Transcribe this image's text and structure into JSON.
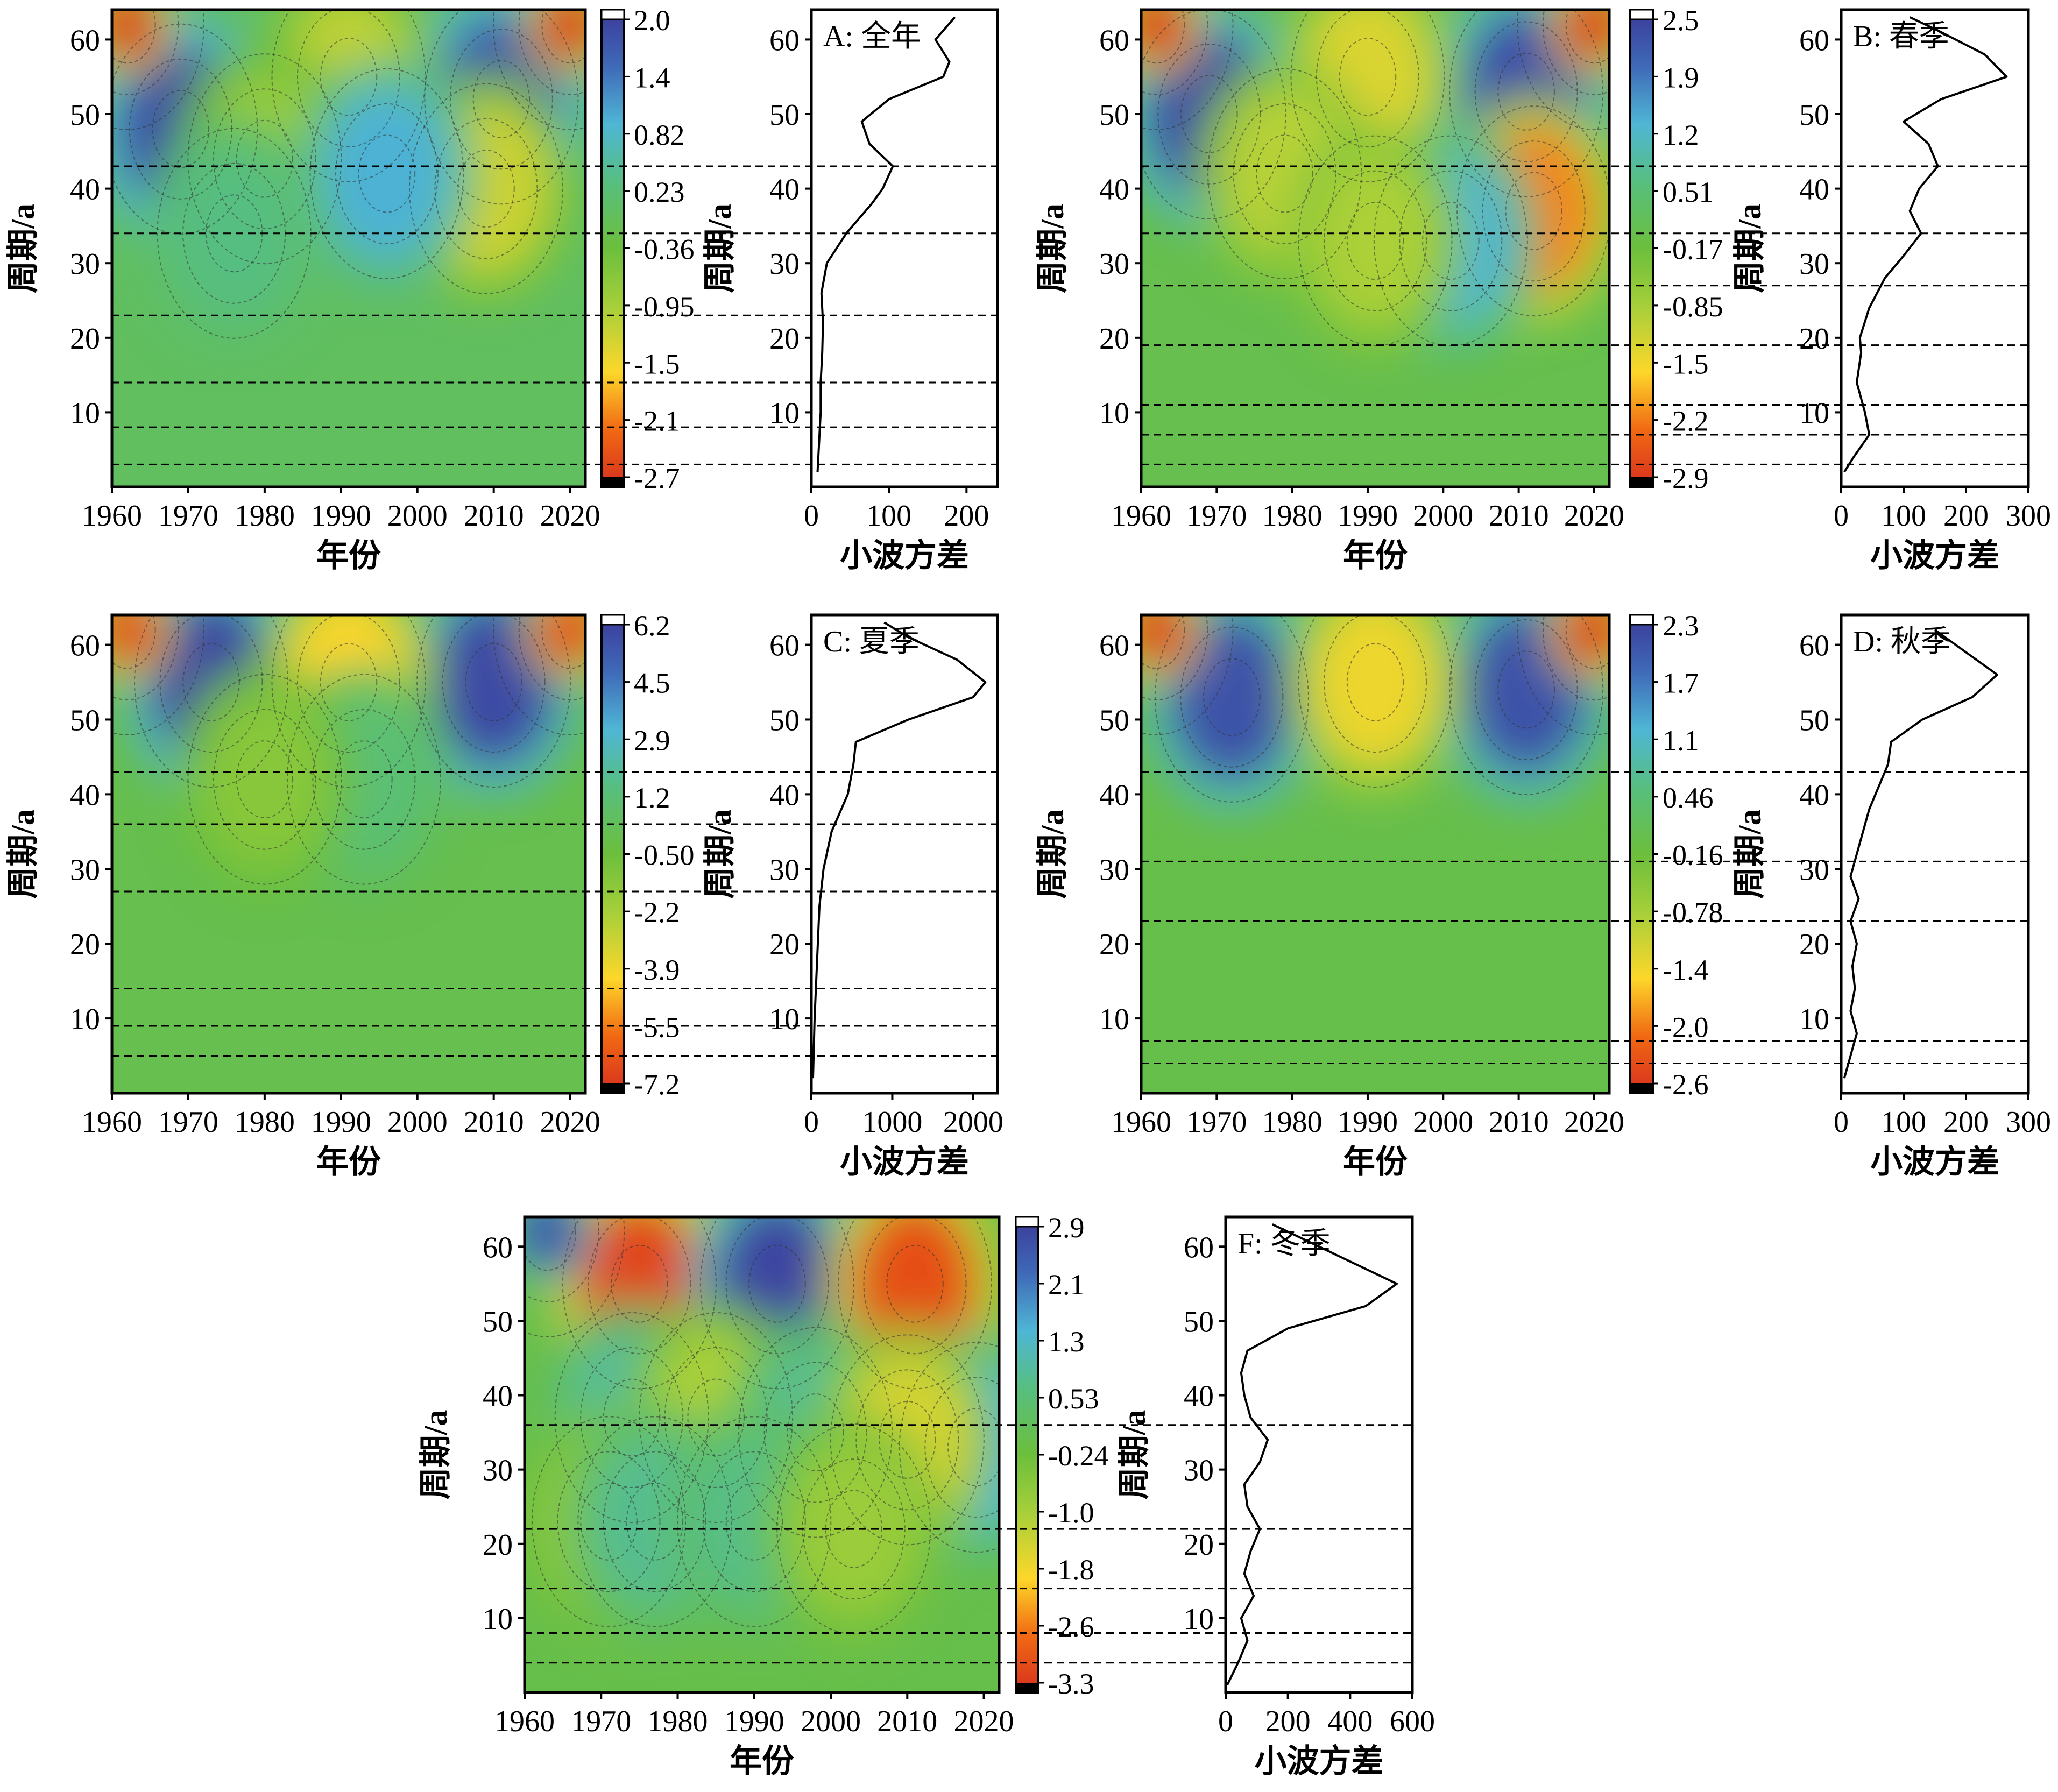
{
  "chart_data": [
    {
      "id": "A",
      "type": "heatmap",
      "title": "A: 全年",
      "xlabel": "年份",
      "ylabel": "周期/a",
      "xlim": [
        1960,
        2022
      ],
      "ylim": [
        0,
        64
      ],
      "xticks": [
        1960,
        1970,
        1980,
        1990,
        2000,
        2010,
        2020
      ],
      "yticks": [
        10,
        20,
        30,
        40,
        50,
        60
      ],
      "colorbar": {
        "ticks": [
          "2.0",
          "1.4",
          "0.82",
          "0.23",
          "-0.36",
          "-0.95",
          "-1.5",
          "-2.1",
          "-2.7"
        ],
        "min": -2.7,
        "max": 2.0
      },
      "blobs": [
        {
          "x": 1969,
          "y": 48,
          "v": 1.8
        },
        {
          "x": 2011,
          "y": 52,
          "v": 1.7
        },
        {
          "x": 1991,
          "y": 55,
          "v": -1.1
        },
        {
          "x": 2009,
          "y": 40,
          "v": -1.2
        },
        {
          "x": 1980,
          "y": 44,
          "v": -0.8
        },
        {
          "x": 1996,
          "y": 42,
          "v": 0.9
        },
        {
          "x": 1976,
          "y": 34,
          "v": 0.3
        },
        {
          "x": 1962,
          "y": 62,
          "v": -2.6
        },
        {
          "x": 2020,
          "y": 62,
          "v": -2.6
        }
      ],
      "variance": {
        "xlabel": "小波方差",
        "xlim": [
          0,
          240
        ],
        "xticks": [
          0,
          100,
          200
        ],
        "period": [
          2,
          6,
          10,
          14,
          18,
          22,
          26,
          30,
          34,
          38,
          40,
          43,
          46,
          49,
          52,
          55,
          57,
          60,
          63
        ],
        "values": [
          8,
          10,
          12,
          12,
          14,
          15,
          13,
          20,
          45,
          78,
          92,
          105,
          75,
          65,
          100,
          170,
          178,
          160,
          185
        ]
      },
      "peaks": [
        3,
        8,
        14,
        23,
        34,
        43
      ]
    },
    {
      "id": "B",
      "type": "heatmap",
      "title": "B: 春季",
      "xlabel": "年份",
      "ylabel": "周期/a",
      "xlim": [
        1960,
        2022
      ],
      "ylim": [
        0,
        64
      ],
      "xticks": [
        1960,
        1970,
        1980,
        1990,
        2000,
        2010,
        2020
      ],
      "yticks": [
        10,
        20,
        30,
        40,
        50,
        60
      ],
      "colorbar": {
        "ticks": [
          "2.5",
          "1.9",
          "1.2",
          "0.51",
          "-0.17",
          "-0.85",
          "-1.5",
          "-2.2",
          "-2.9"
        ],
        "min": -2.9,
        "max": 2.5
      },
      "blobs": [
        {
          "x": 1969,
          "y": 50,
          "v": 2.3
        },
        {
          "x": 2011,
          "y": 53,
          "v": 2.2
        },
        {
          "x": 1990,
          "y": 55,
          "v": -1.3
        },
        {
          "x": 2012,
          "y": 37,
          "v": -2.1
        },
        {
          "x": 1979,
          "y": 42,
          "v": -1.0
        },
        {
          "x": 2001,
          "y": 33,
          "v": 1.2
        },
        {
          "x": 1991,
          "y": 33,
          "v": -0.9
        },
        {
          "x": 1962,
          "y": 62,
          "v": -2.8
        },
        {
          "x": 2020,
          "y": 62,
          "v": -2.8
        }
      ],
      "variance": {
        "xlabel": "小波方差",
        "xlim": [
          0,
          300
        ],
        "xticks": [
          0,
          100,
          200,
          300
        ],
        "period": [
          2,
          4,
          7,
          10,
          14,
          18,
          20,
          24,
          28,
          31,
          34,
          37,
          40,
          43,
          46,
          49,
          52,
          55,
          58,
          61,
          63
        ],
        "values": [
          5,
          20,
          45,
          38,
          25,
          32,
          30,
          45,
          70,
          100,
          128,
          110,
          125,
          155,
          140,
          100,
          160,
          265,
          230,
          160,
          110
        ]
      },
      "peaks": [
        3,
        7,
        11,
        19,
        27,
        34,
        43
      ]
    },
    {
      "id": "C",
      "type": "heatmap",
      "title": "C: 夏季",
      "xlabel": "年份",
      "ylabel": "周期/a",
      "xlim": [
        1960,
        2022
      ],
      "ylim": [
        0,
        64
      ],
      "xticks": [
        1960,
        1970,
        1980,
        1990,
        2000,
        2010,
        2020
      ],
      "yticks": [
        10,
        20,
        30,
        40,
        50,
        60
      ],
      "colorbar": {
        "ticks": [
          "6.2",
          "4.5",
          "2.9",
          "1.2",
          "-0.50",
          "-2.2",
          "-3.9",
          "-5.5",
          "-7.2"
        ],
        "min": -7.2,
        "max": 6.2
      },
      "blobs": [
        {
          "x": 1973,
          "y": 55,
          "v": 5.8
        },
        {
          "x": 2010,
          "y": 55,
          "v": 5.6
        },
        {
          "x": 1991,
          "y": 55,
          "v": -4.0
        },
        {
          "x": 1962,
          "y": 62,
          "v": -6.5
        },
        {
          "x": 2020,
          "y": 62,
          "v": -6.5
        },
        {
          "x": 1993,
          "y": 42,
          "v": 1.1
        },
        {
          "x": 1980,
          "y": 42,
          "v": -1.3
        }
      ],
      "variance": {
        "xlabel": "小波方差",
        "xlim": [
          0,
          2300
        ],
        "xticks": [
          0,
          1000,
          2000
        ],
        "period": [
          2,
          6,
          10,
          15,
          20,
          25,
          30,
          35,
          40,
          44,
          47,
          50,
          53,
          55,
          58,
          61,
          63
        ],
        "values": [
          20,
          30,
          40,
          60,
          80,
          100,
          150,
          250,
          450,
          520,
          550,
          1200,
          2000,
          2150,
          1800,
          1200,
          900
        ]
      },
      "peaks": [
        5,
        9,
        14,
        27,
        36,
        43
      ]
    },
    {
      "id": "D",
      "type": "heatmap",
      "title": "D: 秋季",
      "xlabel": "年份",
      "ylabel": "周期/a",
      "xlim": [
        1960,
        2022
      ],
      "ylim": [
        0,
        64
      ],
      "xticks": [
        1960,
        1970,
        1980,
        1990,
        2000,
        2010,
        2020
      ],
      "yticks": [
        10,
        20,
        30,
        40,
        50,
        60
      ],
      "colorbar": {
        "ticks": [
          "2.3",
          "1.7",
          "1.1",
          "0.46",
          "-0.16",
          "-0.78",
          "-1.4",
          "-2.0",
          "-2.6"
        ],
        "min": -2.6,
        "max": 2.3
      },
      "blobs": [
        {
          "x": 1972,
          "y": 53,
          "v": 2.0
        },
        {
          "x": 2011,
          "y": 54,
          "v": 2.0
        },
        {
          "x": 1991,
          "y": 55,
          "v": -1.3
        },
        {
          "x": 1962,
          "y": 62,
          "v": -2.5
        },
        {
          "x": 2020,
          "y": 62,
          "v": -2.5
        }
      ],
      "variance": {
        "xlabel": "小波方差",
        "xlim": [
          0,
          300
        ],
        "xticks": [
          0,
          100,
          200,
          300
        ],
        "period": [
          2,
          5,
          8,
          11,
          14,
          17,
          20,
          23,
          26,
          29,
          32,
          35,
          38,
          41,
          44,
          47,
          50,
          53,
          56,
          59,
          62
        ],
        "values": [
          5,
          15,
          25,
          15,
          22,
          18,
          25,
          15,
          28,
          15,
          25,
          35,
          45,
          60,
          75,
          80,
          130,
          210,
          250,
          200,
          150
        ]
      },
      "peaks": [
        4,
        7,
        23,
        31,
        43
      ]
    },
    {
      "id": "F",
      "type": "heatmap",
      "title": "F: 冬季",
      "xlabel": "年份",
      "ylabel": "周期/a",
      "xlim": [
        1960,
        2022
      ],
      "ylim": [
        0,
        64
      ],
      "xticks": [
        1960,
        1970,
        1980,
        1990,
        2000,
        2010,
        2020
      ],
      "yticks": [
        10,
        20,
        30,
        40,
        50,
        60
      ],
      "colorbar": {
        "ticks": [
          "2.9",
          "2.1",
          "1.3",
          "0.53",
          "-0.24",
          "-1.0",
          "-1.8",
          "-2.6",
          "-3.3"
        ],
        "min": -3.3,
        "max": 2.9
      },
      "blobs": [
        {
          "x": 1975,
          "y": 55,
          "v": -3.0
        },
        {
          "x": 1993,
          "y": 55,
          "v": 2.7
        },
        {
          "x": 2011,
          "y": 55,
          "v": -2.9
        },
        {
          "x": 2019,
          "y": 33,
          "v": 1.4
        },
        {
          "x": 1974,
          "y": 37,
          "v": 0.9
        },
        {
          "x": 1985,
          "y": 37,
          "v": -1.0
        },
        {
          "x": 1998,
          "y": 35,
          "v": 0.8
        },
        {
          "x": 2010,
          "y": 34,
          "v": -1.4
        },
        {
          "x": 1971,
          "y": 23,
          "v": -0.8
        },
        {
          "x": 1977,
          "y": 23,
          "v": 0.8
        },
        {
          "x": 1990,
          "y": 23,
          "v": 0.7
        },
        {
          "x": 2003,
          "y": 22,
          "v": -0.8
        },
        {
          "x": 1963,
          "y": 62,
          "v": 2.5
        }
      ],
      "variance": {
        "xlabel": "小波方差",
        "xlim": [
          0,
          600
        ],
        "xticks": [
          0,
          200,
          400,
          600
        ],
        "period": [
          1,
          4,
          7,
          10,
          13,
          16,
          19,
          22,
          25,
          28,
          31,
          34,
          37,
          40,
          43,
          46,
          49,
          52,
          55,
          58,
          61,
          63
        ],
        "values": [
          5,
          40,
          70,
          50,
          90,
          60,
          80,
          110,
          70,
          60,
          110,
          135,
          80,
          60,
          50,
          70,
          200,
          450,
          550,
          400,
          250,
          150
        ]
      },
      "peaks": [
        4,
        8,
        14,
        22,
        36
      ]
    }
  ]
}
